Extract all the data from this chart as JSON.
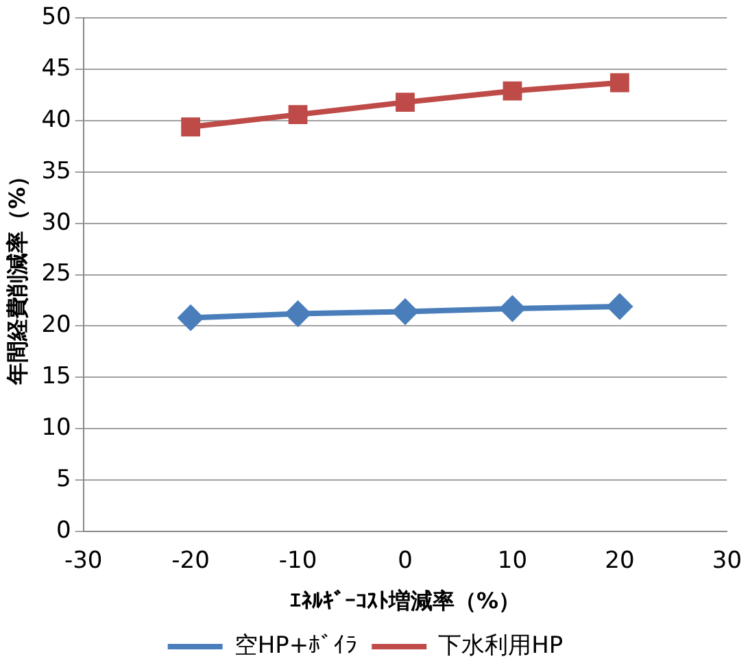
{
  "chart_data": {
    "type": "line",
    "xlabel": "ｴﾈﾙｷﾞｰｺｽﾄ増減率（%）",
    "ylabel": "年間経費削減率（%）",
    "x": [
      -20,
      -10,
      0,
      10,
      20
    ],
    "series": [
      {
        "name": "空HP+ﾎﾞｲﾗ",
        "color": "#4a7ebb",
        "marker": "diamond",
        "values": [
          20.8,
          21.2,
          21.4,
          21.7,
          21.9
        ]
      },
      {
        "name": "下水利用HP",
        "color": "#be4b48",
        "marker": "square",
        "values": [
          39.4,
          40.6,
          41.8,
          42.9,
          43.7
        ]
      }
    ],
    "xlim": [
      -30,
      30
    ],
    "xticks": [
      -30,
      -20,
      -10,
      0,
      10,
      20,
      30
    ],
    "ylim": [
      0,
      50
    ],
    "yticks": [
      0,
      5,
      10,
      15,
      20,
      25,
      30,
      35,
      40,
      45,
      50
    ],
    "grid": "y",
    "legend": "bottom"
  }
}
